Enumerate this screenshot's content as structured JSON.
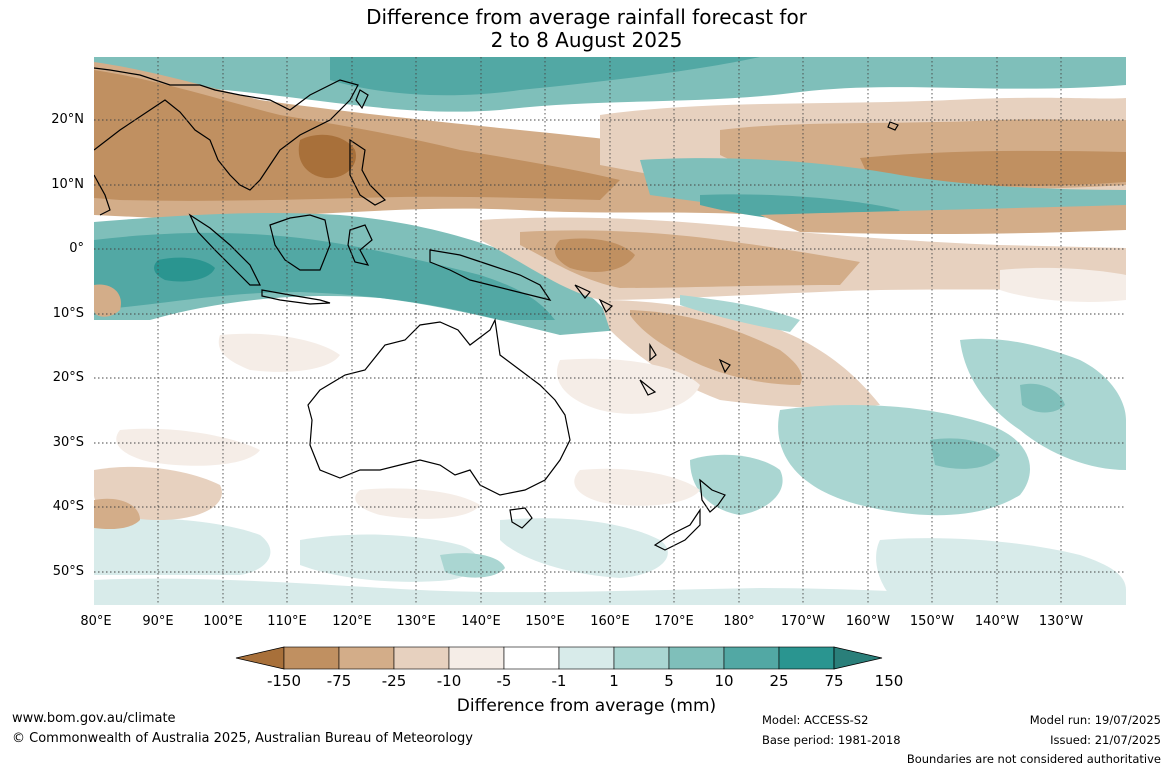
{
  "title": {
    "line1": "Difference from average rainfall forecast for",
    "line2": "2 to 8 August 2025"
  },
  "lat_labels": [
    "20°N",
    "10°N",
    "0°",
    "10°S",
    "20°S",
    "30°S",
    "40°S",
    "50°S"
  ],
  "lon_labels": [
    "80°E",
    "90°E",
    "100°E",
    "110°E",
    "120°E",
    "130°E",
    "140°E",
    "150°E",
    "160°E",
    "170°E",
    "180°",
    "170°W",
    "160°W",
    "150°W",
    "140°W",
    "130°W"
  ],
  "legend": {
    "title": "Difference from average (mm)",
    "ticks": [
      "-150",
      "-75",
      "-25",
      "-10",
      "-5",
      "-1",
      "1",
      "5",
      "10",
      "25",
      "75",
      "150"
    ],
    "colors": [
      "#a8703a",
      "#c09061",
      "#d3ad89",
      "#e7d1bf",
      "#f5ede7",
      "#ffffff",
      "#d8ebea",
      "#aad6d2",
      "#7fbfba",
      "#52a8a4",
      "#2a9590",
      "#2a7f7a"
    ]
  },
  "footer": {
    "website": "www.bom.gov.au/climate",
    "copyright": "© Commonwealth of Australia 2025, Australian Bureau of Meteorology",
    "model": "Model: ACCESS-S2",
    "base_period": "Base period: 1981-2018",
    "model_run": "Model run: 19/07/2025",
    "issued": "Issued: 21/07/2025",
    "disclaimer": "Boundaries are not considered authoritative"
  }
}
